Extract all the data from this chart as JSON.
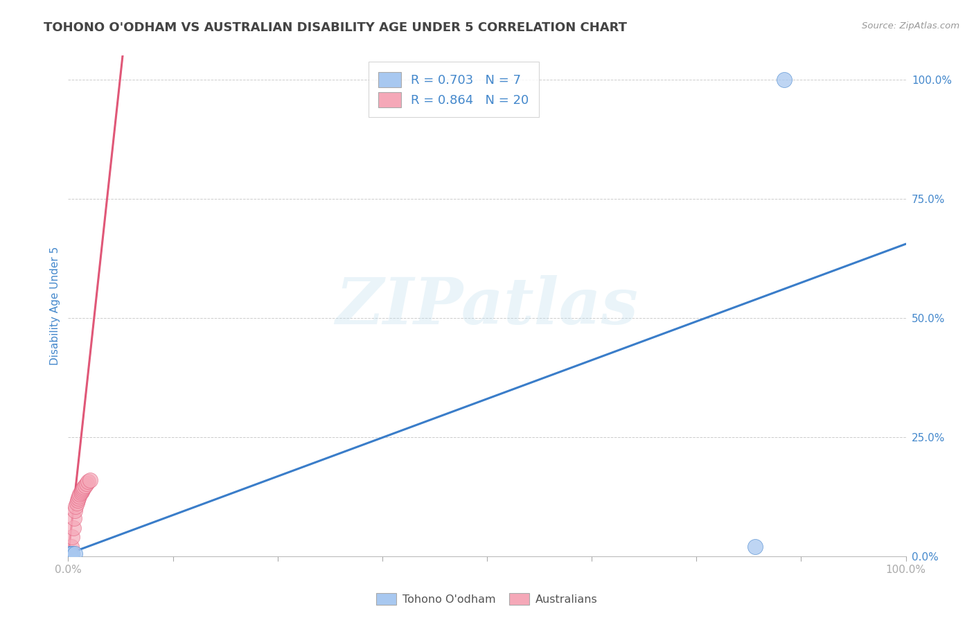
{
  "title": "TOHONO O'ODHAM VS AUSTRALIAN DISABILITY AGE UNDER 5 CORRELATION CHART",
  "source": "Source: ZipAtlas.com",
  "ylabel": "Disability Age Under 5",
  "watermark": "ZIPatlas",
  "blue_points_x": [
    0.001,
    0.002,
    0.003,
    0.005,
    0.008,
    0.82,
    0.855
  ],
  "blue_points_y": [
    0.005,
    0.003,
    0.004,
    0.006,
    0.005,
    0.02,
    1.0
  ],
  "pink_points_x": [
    0.004,
    0.005,
    0.006,
    0.007,
    0.008,
    0.009,
    0.01,
    0.011,
    0.012,
    0.013,
    0.014,
    0.015,
    0.016,
    0.017,
    0.018,
    0.019,
    0.02,
    0.022,
    0.024,
    0.026
  ],
  "pink_points_y": [
    0.02,
    0.04,
    0.06,
    0.08,
    0.095,
    0.105,
    0.112,
    0.118,
    0.122,
    0.126,
    0.13,
    0.133,
    0.136,
    0.139,
    0.142,
    0.145,
    0.148,
    0.152,
    0.156,
    0.16
  ],
  "blue_line_x": [
    0.0,
    1.0
  ],
  "blue_line_y": [
    0.005,
    0.655
  ],
  "pink_dashed_line_x": [
    0.0,
    0.065
  ],
  "pink_dashed_line_y": [
    0.0,
    1.05
  ],
  "blue_R": "0.703",
  "blue_N": "7",
  "pink_R": "0.864",
  "pink_N": "20",
  "blue_color": "#A8C8F0",
  "pink_color": "#F5A8B8",
  "blue_line_color": "#3A7DC9",
  "pink_line_color": "#E05878",
  "pink_dashed_color": "#F0B0C0",
  "right_yticks": [
    0.0,
    0.25,
    0.5,
    0.75,
    1.0
  ],
  "right_yticklabels": [
    "0.0%",
    "25.0%",
    "50.0%",
    "75.0%",
    "100.0%"
  ],
  "xlim": [
    0.0,
    1.0
  ],
  "ylim": [
    0.0,
    1.05
  ],
  "grid_color": "#CCCCCC",
  "background_color": "#FFFFFF",
  "axis_color": "#4488CC",
  "title_color": "#444444",
  "source_color": "#999999"
}
